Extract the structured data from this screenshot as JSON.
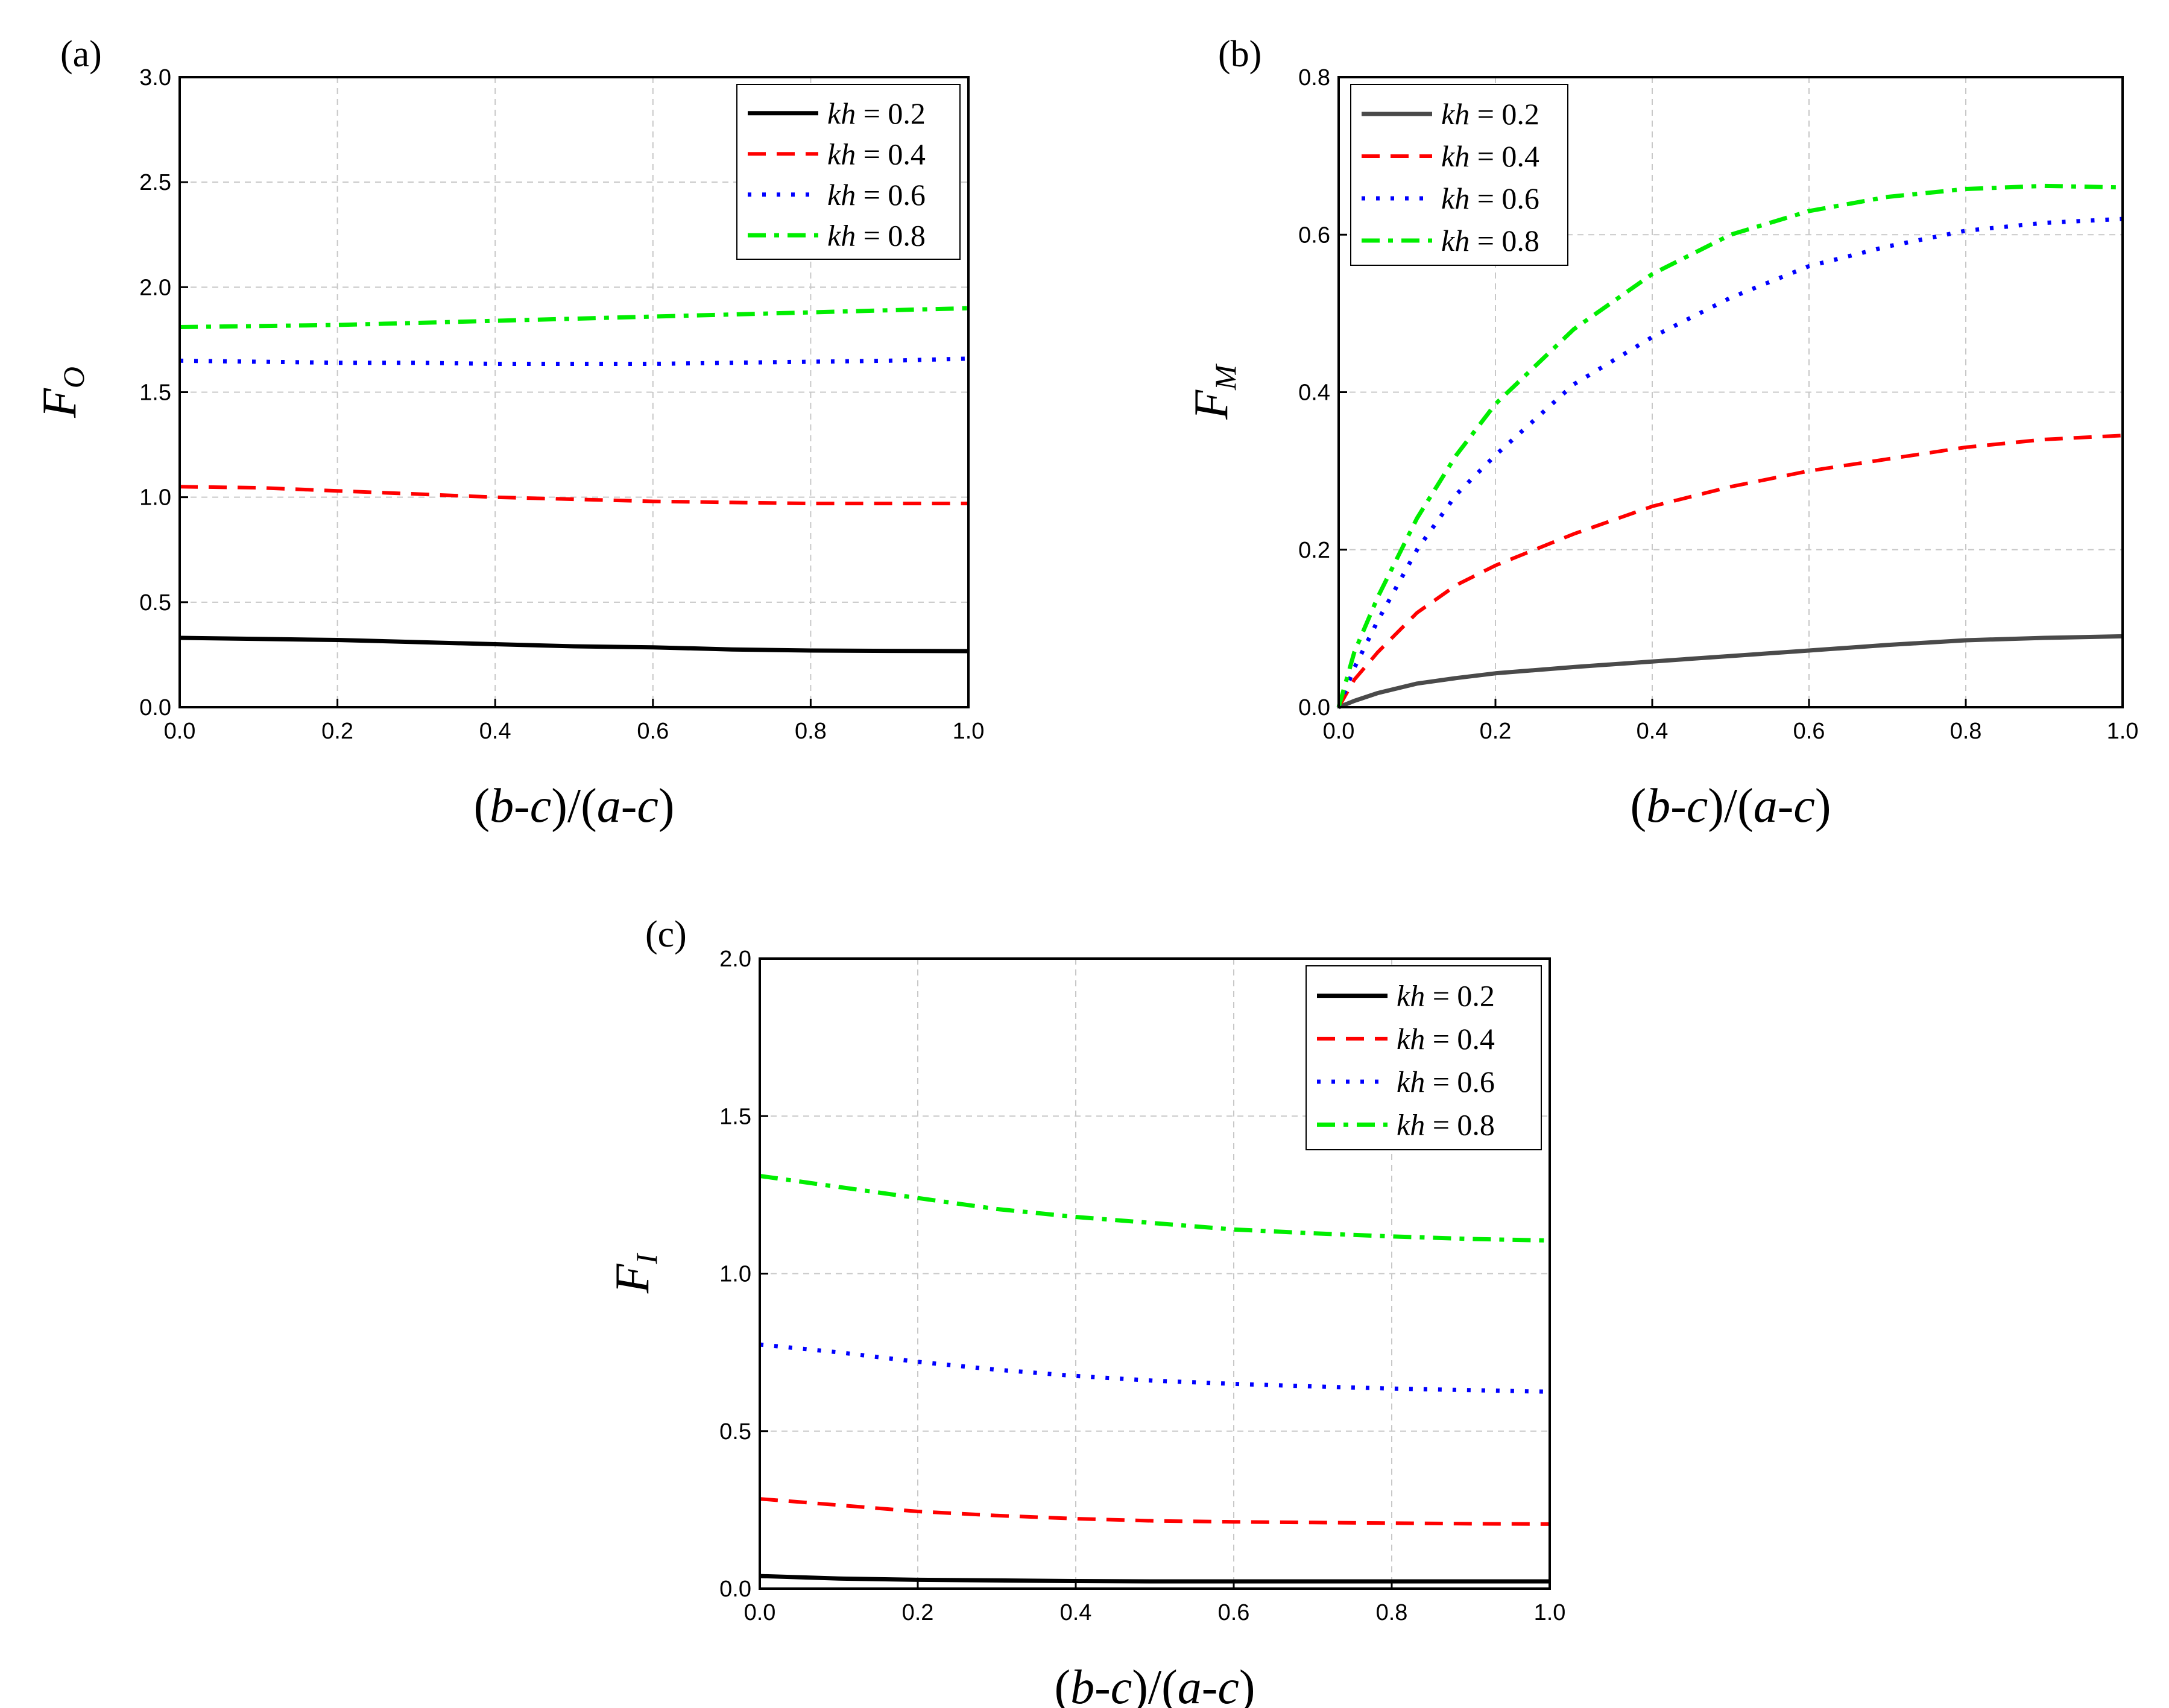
{
  "figure": {
    "colors": {
      "kh_0_2": "#000000",
      "kh_0_2_b": "#4a4a4a",
      "kh_0_4": "#ff0000",
      "kh_0_6": "#0000ff",
      "kh_0_8": "#00ee00",
      "grid": "#c8c8c8"
    }
  },
  "chart_data": [
    {
      "type": "line",
      "panel_label": "(a)",
      "title": "",
      "xlabel": {
        "main": "(",
        "parts": [
          "b",
          "-",
          "c",
          ")/(",
          "a",
          "-",
          "c",
          ")"
        ]
      },
      "xlabel_text": "(b-c)/(a-c)",
      "ylabel": {
        "symbol": "F",
        "subscript": "O"
      },
      "xlim": [
        0,
        1
      ],
      "ylim": [
        0,
        3
      ],
      "xticks": [
        "0.0",
        "0.2",
        "0.4",
        "0.6",
        "0.8",
        "1.0"
      ],
      "yticks": [
        "0.0",
        "0.5",
        "1.0",
        "1.5",
        "2.0",
        "2.5",
        "3.0"
      ],
      "grid": true,
      "legend_position": "top-right",
      "x": [
        0.0,
        0.1,
        0.2,
        0.3,
        0.4,
        0.5,
        0.6,
        0.7,
        0.8,
        0.9,
        1.0
      ],
      "series": [
        {
          "name": "kh = 0.2",
          "kh": "kh",
          "value": "= 0.2",
          "style": "solid",
          "values": [
            0.33,
            0.325,
            0.32,
            0.31,
            0.3,
            0.29,
            0.285,
            0.275,
            0.27,
            0.268,
            0.267
          ]
        },
        {
          "name": "kh = 0.4",
          "kh": "kh",
          "value": "= 0.4",
          "style": "dashed",
          "values": [
            1.05,
            1.045,
            1.03,
            1.015,
            1.0,
            0.99,
            0.98,
            0.975,
            0.97,
            0.97,
            0.97
          ]
        },
        {
          "name": "kh = 0.6",
          "kh": "kh",
          "value": "= 0.6",
          "style": "dotted",
          "values": [
            1.65,
            1.645,
            1.64,
            1.64,
            1.635,
            1.635,
            1.635,
            1.64,
            1.645,
            1.65,
            1.66
          ]
        },
        {
          "name": "kh = 0.8",
          "kh": "kh",
          "value": "= 0.8",
          "style": "dashdot",
          "values": [
            1.81,
            1.815,
            1.82,
            1.83,
            1.84,
            1.85,
            1.86,
            1.87,
            1.88,
            1.89,
            1.9
          ]
        }
      ]
    },
    {
      "type": "line",
      "panel_label": "(b)",
      "title": "",
      "xlabel_text": "(b-c)/(a-c)",
      "ylabel": {
        "symbol": "F",
        "subscript": "M"
      },
      "xlim": [
        0,
        1
      ],
      "ylim": [
        0,
        0.8
      ],
      "xticks": [
        "0.0",
        "0.2",
        "0.4",
        "0.6",
        "0.8",
        "1.0"
      ],
      "yticks": [
        "0.0",
        "0.2",
        "0.4",
        "0.6",
        "0.8"
      ],
      "grid": true,
      "legend_position": "top-left",
      "x": [
        0.0,
        0.02,
        0.05,
        0.1,
        0.15,
        0.2,
        0.3,
        0.4,
        0.5,
        0.6,
        0.7,
        0.8,
        0.9,
        1.0
      ],
      "series": [
        {
          "name": "kh = 0.2",
          "kh": "kh",
          "value": "= 0.2",
          "style": "solid-gray",
          "values": [
            0.0,
            0.008,
            0.018,
            0.03,
            0.037,
            0.043,
            0.051,
            0.058,
            0.065,
            0.072,
            0.079,
            0.085,
            0.088,
            0.09
          ]
        },
        {
          "name": "kh = 0.4",
          "kh": "kh",
          "value": "= 0.4",
          "style": "dashed",
          "values": [
            0.0,
            0.035,
            0.07,
            0.12,
            0.155,
            0.18,
            0.22,
            0.255,
            0.28,
            0.3,
            0.315,
            0.33,
            0.34,
            0.345
          ]
        },
        {
          "name": "kh = 0.6",
          "kh": "kh",
          "value": "= 0.6",
          "style": "dotted",
          "values": [
            0.0,
            0.05,
            0.11,
            0.2,
            0.27,
            0.32,
            0.41,
            0.47,
            0.52,
            0.56,
            0.585,
            0.605,
            0.615,
            0.62
          ]
        },
        {
          "name": "kh = 0.8",
          "kh": "kh",
          "value": "= 0.8",
          "style": "dashdot",
          "values": [
            0.0,
            0.07,
            0.14,
            0.24,
            0.32,
            0.385,
            0.48,
            0.55,
            0.6,
            0.63,
            0.648,
            0.658,
            0.662,
            0.66
          ]
        }
      ]
    },
    {
      "type": "line",
      "panel_label": "(c)",
      "title": "",
      "xlabel_text": "(b-c)/(a-c)",
      "ylabel": {
        "symbol": "F",
        "subscript": "I"
      },
      "xlim": [
        0,
        1
      ],
      "ylim": [
        0,
        2
      ],
      "xticks": [
        "0.0",
        "0.2",
        "0.4",
        "0.6",
        "0.8",
        "1.0"
      ],
      "yticks": [
        "0.0",
        "0.5",
        "1.0",
        "1.5",
        "2.0"
      ],
      "grid": true,
      "legend_position": "top-right",
      "x": [
        0.0,
        0.1,
        0.2,
        0.3,
        0.4,
        0.5,
        0.6,
        0.7,
        0.8,
        0.9,
        1.0
      ],
      "series": [
        {
          "name": "kh = 0.2",
          "kh": "kh",
          "value": "= 0.2",
          "style": "solid",
          "values": [
            0.04,
            0.032,
            0.028,
            0.026,
            0.024,
            0.023,
            0.023,
            0.023,
            0.023,
            0.023,
            0.023
          ]
        },
        {
          "name": "kh = 0.4",
          "kh": "kh",
          "value": "= 0.4",
          "style": "dashed",
          "values": [
            0.285,
            0.265,
            0.245,
            0.232,
            0.222,
            0.215,
            0.212,
            0.21,
            0.208,
            0.206,
            0.205
          ]
        },
        {
          "name": "kh = 0.6",
          "kh": "kh",
          "value": "= 0.6",
          "style": "dotted",
          "values": [
            0.775,
            0.75,
            0.72,
            0.695,
            0.675,
            0.66,
            0.65,
            0.642,
            0.635,
            0.63,
            0.625
          ]
        },
        {
          "name": "kh = 0.8",
          "kh": "kh",
          "value": "= 0.8",
          "style": "dashdot",
          "values": [
            1.31,
            1.275,
            1.24,
            1.205,
            1.18,
            1.16,
            1.14,
            1.128,
            1.118,
            1.11,
            1.105
          ]
        }
      ]
    }
  ]
}
